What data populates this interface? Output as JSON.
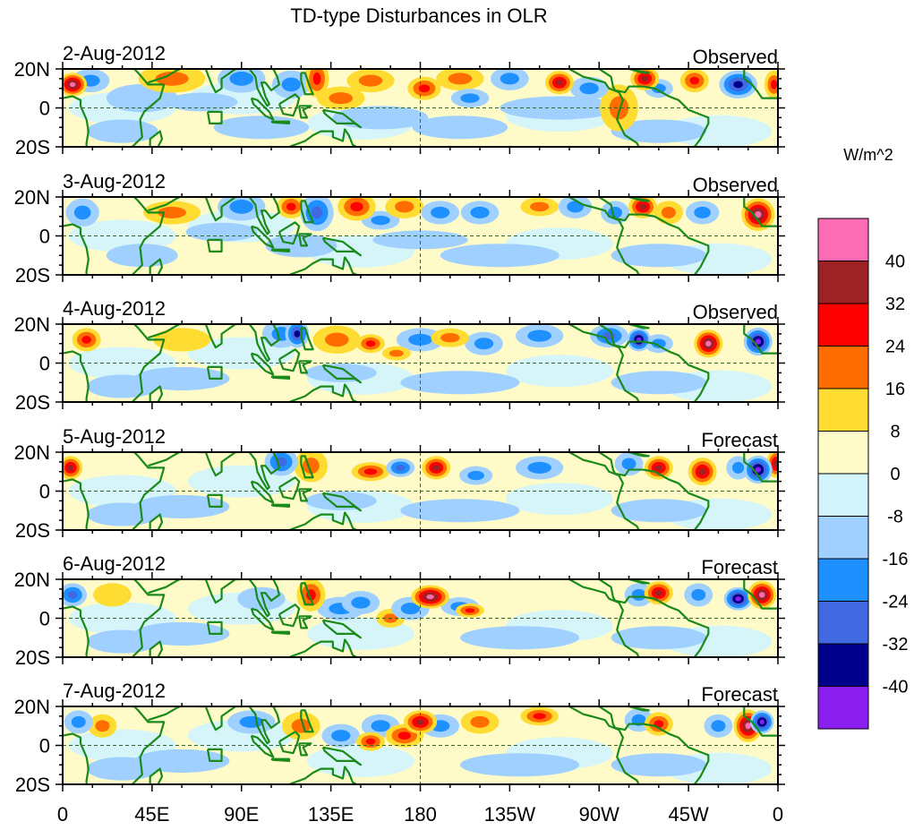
{
  "chart_data": {
    "type": "heatmap",
    "title": "TD-type Disturbances in OLR",
    "units_label": "W/m^2",
    "x_ticks": [
      "0",
      "45E",
      "90E",
      "135E",
      "180",
      "135W",
      "90W",
      "45W",
      "0"
    ],
    "x_tick_values": [
      0,
      45,
      90,
      135,
      180,
      225,
      270,
      315,
      360
    ],
    "y_ticks": [
      "20N",
      "0",
      "20S"
    ],
    "y_tick_values": [
      20,
      0,
      -20
    ],
    "xlim": [
      0,
      360
    ],
    "ylim": [
      -20,
      20
    ],
    "colorbar": {
      "labels": [
        "40",
        "32",
        "24",
        "16",
        "8",
        "0",
        "-8",
        "-16",
        "-24",
        "-32",
        "-40"
      ],
      "colors": [
        "#fc6cb4",
        "#9e2224",
        "#ff0000",
        "#ff6d00",
        "#ffdc32",
        "#fffbc8",
        "#d2f4fd",
        "#9fd0ff",
        "#1e90ff",
        "#4169e1",
        "#00008b",
        "#8a1ff0"
      ]
    },
    "anomaly_format": "[lon, lat, value W/m^2, lon half-width deg, lat half-width deg] (approximate)",
    "panels": [
      {
        "date": "2-Aug-2012",
        "kind": "Observed",
        "anomalies": [
          [
            5,
            12,
            34,
            6,
            5
          ],
          [
            14,
            14,
            -10,
            8,
            5
          ],
          [
            40,
            5,
            -8,
            15,
            6
          ],
          [
            55,
            15,
            10,
            14,
            6
          ],
          [
            90,
            15,
            -12,
            10,
            6
          ],
          [
            115,
            12,
            -10,
            8,
            6
          ],
          [
            128,
            15,
            20,
            5,
            8
          ],
          [
            140,
            5,
            10,
            10,
            5
          ],
          [
            155,
            14,
            10,
            10,
            5
          ],
          [
            182,
            10,
            22,
            7,
            5
          ],
          [
            200,
            15,
            10,
            10,
            5
          ],
          [
            205,
            5,
            -10,
            8,
            4
          ],
          [
            225,
            15,
            -10,
            8,
            5
          ],
          [
            250,
            13,
            28,
            6,
            5
          ],
          [
            265,
            10,
            -12,
            8,
            5
          ],
          [
            280,
            0,
            10,
            8,
            10
          ],
          [
            293,
            15,
            30,
            6,
            5
          ],
          [
            300,
            10,
            -10,
            6,
            4
          ],
          [
            318,
            14,
            18,
            6,
            5
          ],
          [
            340,
            12,
            -26,
            8,
            6
          ],
          [
            358,
            12,
            18,
            4,
            6
          ],
          [
            100,
            -10,
            -8,
            20,
            5
          ],
          [
            200,
            -10,
            -6,
            20,
            5
          ],
          [
            300,
            -12,
            -8,
            20,
            5
          ],
          [
            30,
            -12,
            -8,
            15,
            5
          ],
          [
            160,
            -5,
            -6,
            20,
            5
          ],
          [
            250,
            0,
            -6,
            25,
            5
          ],
          [
            70,
            3,
            -6,
            15,
            4
          ]
        ]
      },
      {
        "date": "3-Aug-2012",
        "kind": "Observed",
        "anomalies": [
          [
            10,
            12,
            -14,
            7,
            6
          ],
          [
            55,
            12,
            10,
            12,
            5
          ],
          [
            90,
            15,
            -10,
            10,
            6
          ],
          [
            115,
            15,
            22,
            6,
            5
          ],
          [
            128,
            12,
            -24,
            7,
            8
          ],
          [
            148,
            15,
            18,
            8,
            6
          ],
          [
            160,
            8,
            -10,
            8,
            4
          ],
          [
            172,
            15,
            10,
            8,
            5
          ],
          [
            190,
            12,
            -16,
            8,
            5
          ],
          [
            210,
            12,
            -12,
            8,
            5
          ],
          [
            240,
            15,
            16,
            8,
            4
          ],
          [
            258,
            15,
            -16,
            7,
            5
          ],
          [
            278,
            12,
            -10,
            6,
            5
          ],
          [
            292,
            15,
            30,
            6,
            5
          ],
          [
            305,
            12,
            14,
            6,
            5
          ],
          [
            322,
            12,
            -16,
            7,
            5
          ],
          [
            350,
            11,
            38,
            7,
            7
          ],
          [
            120,
            -5,
            -8,
            15,
            5
          ],
          [
            220,
            -10,
            -6,
            25,
            5
          ],
          [
            300,
            -10,
            -8,
            20,
            5
          ],
          [
            40,
            -10,
            -8,
            15,
            5
          ],
          [
            80,
            2,
            -6,
            15,
            4
          ],
          [
            180,
            -2,
            -6,
            20,
            4
          ]
        ]
      },
      {
        "date": "4-Aug-2012",
        "kind": "Observed",
        "anomalies": [
          [
            12,
            12,
            20,
            6,
            5
          ],
          [
            60,
            12,
            8,
            12,
            5
          ],
          [
            110,
            15,
            -12,
            8,
            6
          ],
          [
            118,
            15,
            -26,
            5,
            6
          ],
          [
            138,
            12,
            16,
            10,
            6
          ],
          [
            155,
            10,
            20,
            6,
            4
          ],
          [
            168,
            5,
            12,
            6,
            3
          ],
          [
            180,
            12,
            -10,
            10,
            5
          ],
          [
            195,
            13,
            16,
            8,
            4
          ],
          [
            212,
            10,
            -12,
            8,
            5
          ],
          [
            240,
            14,
            -10,
            10,
            5
          ],
          [
            275,
            14,
            -20,
            8,
            5
          ],
          [
            290,
            12,
            -36,
            5,
            5
          ],
          [
            300,
            10,
            -10,
            6,
            4
          ],
          [
            325,
            10,
            40,
            6,
            6
          ],
          [
            350,
            11,
            -36,
            6,
            6
          ],
          [
            60,
            -8,
            -8,
            20,
            5
          ],
          [
            200,
            -10,
            -6,
            25,
            5
          ],
          [
            300,
            -10,
            -8,
            20,
            5
          ],
          [
            140,
            -5,
            -6,
            15,
            4
          ],
          [
            30,
            -12,
            -6,
            15,
            5
          ]
        ]
      },
      {
        "date": "5-Aug-2012",
        "kind": "Forecast",
        "anomalies": [
          [
            4,
            12,
            32,
            5,
            5
          ],
          [
            110,
            15,
            -20,
            7,
            6
          ],
          [
            125,
            13,
            16,
            7,
            7
          ],
          [
            155,
            10,
            18,
            8,
            4
          ],
          [
            170,
            12,
            -18,
            6,
            4
          ],
          [
            188,
            12,
            28,
            6,
            5
          ],
          [
            208,
            8,
            -14,
            7,
            4
          ],
          [
            240,
            12,
            -10,
            10,
            5
          ],
          [
            285,
            14,
            -16,
            6,
            5
          ],
          [
            300,
            12,
            30,
            6,
            5
          ],
          [
            322,
            10,
            26,
            6,
            6
          ],
          [
            340,
            12,
            -14,
            5,
            5
          ],
          [
            350,
            11,
            -38,
            6,
            6
          ],
          [
            359,
            14,
            30,
            4,
            6
          ],
          [
            60,
            -8,
            -8,
            20,
            5
          ],
          [
            200,
            -10,
            -6,
            25,
            5
          ],
          [
            300,
            -10,
            -8,
            20,
            5
          ],
          [
            30,
            -12,
            -6,
            15,
            5
          ],
          [
            140,
            -5,
            -6,
            15,
            4
          ]
        ]
      },
      {
        "date": "6-Aug-2012",
        "kind": "Forecast",
        "anomalies": [
          [
            5,
            12,
            -20,
            6,
            5
          ],
          [
            25,
            12,
            8,
            8,
            5
          ],
          [
            100,
            10,
            -8,
            10,
            5
          ],
          [
            125,
            12,
            20,
            6,
            7
          ],
          [
            140,
            5,
            -12,
            10,
            5
          ],
          [
            150,
            8,
            -14,
            8,
            5
          ],
          [
            165,
            0,
            10,
            6,
            4
          ],
          [
            175,
            5,
            -10,
            8,
            5
          ],
          [
            185,
            11,
            34,
            8,
            5
          ],
          [
            200,
            6,
            -10,
            8,
            4
          ],
          [
            205,
            4,
            18,
            6,
            3
          ],
          [
            290,
            12,
            -10,
            6,
            5
          ],
          [
            300,
            13,
            30,
            6,
            5
          ],
          [
            320,
            12,
            -10,
            6,
            5
          ],
          [
            340,
            10,
            -34,
            6,
            5
          ],
          [
            352,
            12,
            38,
            6,
            6
          ],
          [
            60,
            -8,
            -8,
            20,
            5
          ],
          [
            230,
            -10,
            -6,
            25,
            5
          ],
          [
            300,
            -10,
            -8,
            20,
            5
          ],
          [
            30,
            -12,
            -6,
            15,
            5
          ]
        ]
      },
      {
        "date": "7-Aug-2012",
        "kind": "Forecast",
        "anomalies": [
          [
            8,
            12,
            -16,
            6,
            5
          ],
          [
            20,
            10,
            14,
            6,
            5
          ],
          [
            95,
            12,
            -12,
            10,
            5
          ],
          [
            120,
            10,
            14,
            8,
            6
          ],
          [
            140,
            5,
            -14,
            8,
            5
          ],
          [
            155,
            2,
            24,
            6,
            4
          ],
          [
            160,
            10,
            -14,
            8,
            5
          ],
          [
            172,
            5,
            18,
            8,
            5
          ],
          [
            180,
            12,
            30,
            7,
            5
          ],
          [
            190,
            10,
            -16,
            8,
            5
          ],
          [
            210,
            12,
            12,
            8,
            5
          ],
          [
            240,
            15,
            18,
            8,
            4
          ],
          [
            290,
            13,
            -14,
            6,
            5
          ],
          [
            300,
            11,
            24,
            6,
            5
          ],
          [
            330,
            10,
            -10,
            6,
            5
          ],
          [
            345,
            10,
            36,
            6,
            7
          ],
          [
            352,
            12,
            -36,
            5,
            5
          ],
          [
            60,
            -8,
            -8,
            20,
            5
          ],
          [
            230,
            -10,
            -6,
            25,
            5
          ],
          [
            300,
            -10,
            -8,
            20,
            5
          ],
          [
            30,
            -12,
            -6,
            15,
            5
          ]
        ]
      }
    ]
  }
}
